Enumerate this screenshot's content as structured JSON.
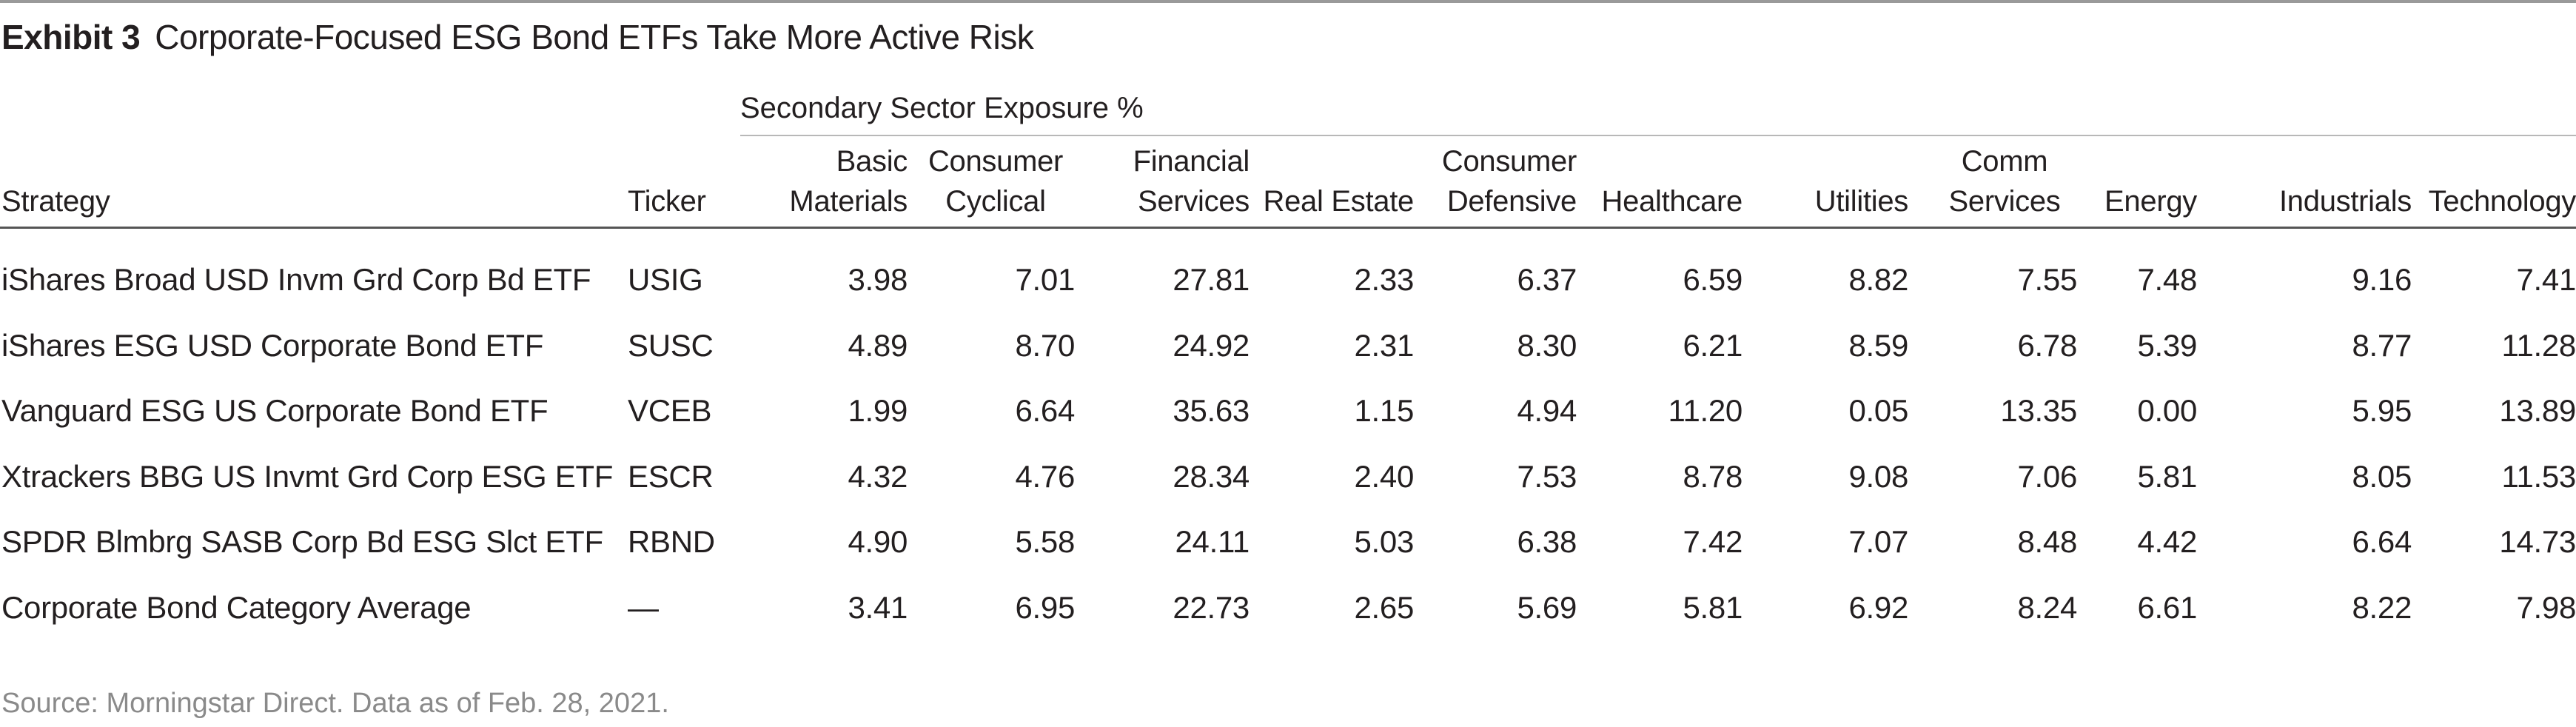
{
  "exhibit_label": "Exhibit 3",
  "title": "Corporate-Focused ESG Bond ETFs Take More Active Risk",
  "group_label": "Secondary Sector Exposure %",
  "source": "Source: Morningstar Direct. Data as of Feb. 28, 2021.",
  "colors": {
    "text": "#231f20",
    "source_text": "#8a8a8a",
    "rule": "#555555"
  },
  "chart_data": {
    "type": "table",
    "title": "Corporate-Focused ESG Bond ETFs Take More Active Risk",
    "group_header": "Secondary Sector Exposure %",
    "columns": [
      "Strategy",
      "Ticker",
      "Basic\nMaterials",
      "Consumer\nCyclical",
      "Financial\nServices",
      "Real Estate",
      "Consumer\nDefensive",
      "Healthcare",
      "Utilities",
      "Comm\nServices",
      "Energy",
      "Industrials",
      "Technology"
    ],
    "rows": [
      [
        "iShares Broad USD Invm Grd Corp Bd ETF",
        "USIG",
        "3.98",
        "7.01",
        "27.81",
        "2.33",
        "6.37",
        "6.59",
        "8.82",
        "7.55",
        "7.48",
        "9.16",
        "7.41"
      ],
      [
        "iShares ESG USD Corporate Bond ETF",
        "SUSC",
        "4.89",
        "8.70",
        "24.92",
        "2.31",
        "8.30",
        "6.21",
        "8.59",
        "6.78",
        "5.39",
        "8.77",
        "11.28"
      ],
      [
        "Vanguard ESG US Corporate Bond ETF",
        "VCEB",
        "1.99",
        "6.64",
        "35.63",
        "1.15",
        "4.94",
        "11.20",
        "0.05",
        "13.35",
        "0.00",
        "5.95",
        "13.89"
      ],
      [
        "Xtrackers BBG US Invmt Grd Corp ESG ETF",
        "ESCR",
        "4.32",
        "4.76",
        "28.34",
        "2.40",
        "7.53",
        "8.78",
        "9.08",
        "7.06",
        "5.81",
        "8.05",
        "11.53"
      ],
      [
        "SPDR Blmbrg SASB Corp Bd ESG Slct ETF",
        "RBND",
        "4.90",
        "5.58",
        "24.11",
        "5.03",
        "6.38",
        "7.42",
        "7.07",
        "8.48",
        "4.42",
        "6.64",
        "14.73"
      ],
      [
        "Corporate Bond Category Average",
        "—",
        "3.41",
        "6.95",
        "22.73",
        "2.65",
        "5.69",
        "5.81",
        "6.92",
        "8.24",
        "6.61",
        "8.22",
        "7.98"
      ]
    ],
    "grid": false
  }
}
